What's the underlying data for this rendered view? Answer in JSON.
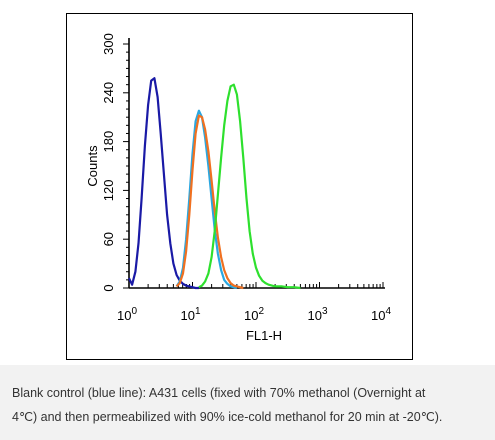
{
  "chart_data": {
    "type": "line",
    "xlabel": "FL1-H",
    "ylabel": "Counts",
    "x_scale": "log",
    "xlim": [
      1,
      10000
    ],
    "ylim": [
      0,
      300
    ],
    "x_ticks": [
      {
        "base": "10",
        "exp": "0",
        "value": 1
      },
      {
        "base": "10",
        "exp": "1",
        "value": 10
      },
      {
        "base": "10",
        "exp": "2",
        "value": 100
      },
      {
        "base": "10",
        "exp": "3",
        "value": 1000
      },
      {
        "base": "10",
        "exp": "4",
        "value": 10000
      }
    ],
    "y_ticks": [
      "0",
      "60",
      "120",
      "180",
      "240",
      "300"
    ],
    "grid": false,
    "series": [
      {
        "color": "#1a1aa6",
        "x": [
          1.0,
          1.12,
          1.26,
          1.41,
          1.58,
          1.78,
          2.0,
          2.24,
          2.51,
          2.82,
          3.16,
          3.55,
          3.98,
          4.47,
          5.01,
          5.62,
          6.31,
          7.08,
          7.94,
          8.91,
          10.0,
          11.2,
          12.6
        ],
        "y": [
          12,
          4,
          20,
          55,
          110,
          175,
          225,
          255,
          258,
          235,
          190,
          140,
          90,
          55,
          30,
          16,
          9,
          5,
          3,
          2,
          1,
          0,
          0
        ]
      },
      {
        "color": "#2aa7e0",
        "x": [
          5.62,
          6.31,
          7.08,
          7.94,
          8.91,
          10.0,
          11.2,
          12.6,
          14.1,
          15.8,
          17.8,
          20.0,
          22.4,
          25.1,
          28.2,
          31.6,
          35.5,
          39.8,
          44.7,
          50.1
        ],
        "y": [
          2,
          8,
          25,
          60,
          110,
          165,
          205,
          218,
          210,
          185,
          150,
          110,
          72,
          42,
          22,
          10,
          5,
          2,
          1,
          0
        ]
      },
      {
        "color": "#f07020",
        "x": [
          5.62,
          6.31,
          7.08,
          7.94,
          8.91,
          10.0,
          11.2,
          12.6,
          14.1,
          15.8,
          17.8,
          20.0,
          22.4,
          25.1,
          28.2,
          31.6,
          35.5,
          39.8,
          44.7,
          50.1,
          56.2,
          63.1
        ],
        "y": [
          2,
          6,
          18,
          45,
          90,
          145,
          190,
          212,
          210,
          195,
          168,
          132,
          95,
          62,
          38,
          22,
          12,
          6,
          3,
          2,
          1,
          0
        ]
      },
      {
        "color": "#2ee02e",
        "x": [
          12.6,
          14.1,
          15.8,
          17.8,
          20.0,
          22.4,
          25.1,
          28.2,
          31.6,
          35.5,
          39.8,
          44.7,
          50.1,
          56.2,
          63.1,
          70.8,
          79.4,
          89.1,
          100,
          112,
          126,
          141,
          158,
          178,
          200,
          251,
          316,
          398,
          501
        ],
        "y": [
          1,
          3,
          8,
          18,
          38,
          70,
          115,
          160,
          200,
          230,
          248,
          250,
          238,
          205,
          160,
          110,
          70,
          42,
          25,
          15,
          9,
          6,
          4,
          3,
          2,
          2,
          1,
          1,
          0
        ]
      }
    ]
  },
  "caption": {
    "line1": "Blank control (blue line): A431 cells (fixed with 70% methanol (Overnight at",
    "line2": "4℃) and then permeabilized with 90% ice-cold methanol for 20 min at -20℃)."
  }
}
